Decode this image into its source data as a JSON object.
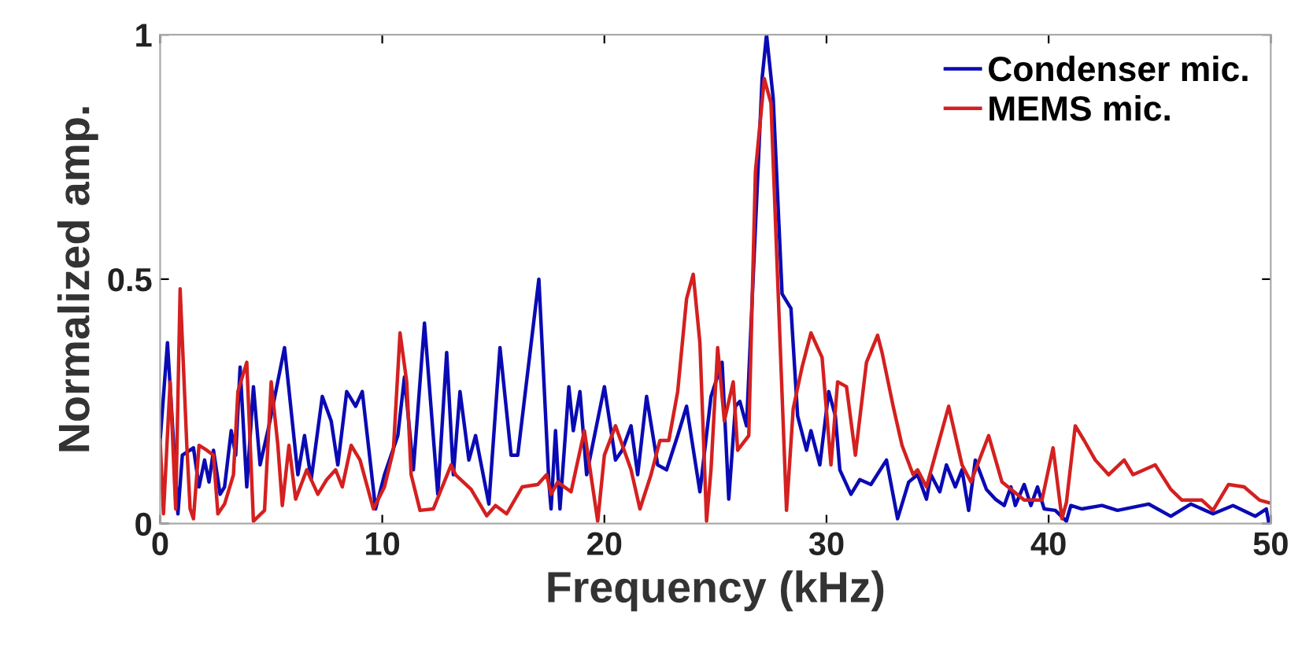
{
  "chart_data": {
    "type": "line",
    "xlabel": "Frequency (kHz)",
    "ylabel": "Normalized amp.",
    "xlim": [
      0,
      50
    ],
    "ylim": [
      0,
      1
    ],
    "xticks": [
      0,
      10,
      20,
      30,
      40,
      50
    ],
    "yticks": [
      0,
      0.5,
      1
    ],
    "grid": false,
    "legend": "top right",
    "marker": "none",
    "line_style": "solid",
    "series": [
      {
        "name": "Condenser mic.",
        "color": "#0a0ab4",
        "x": [
          0,
          0.33,
          0.8,
          1.0,
          1.5,
          1.75,
          2.0,
          2.2,
          2.4,
          2.7,
          2.9,
          3.2,
          3.4,
          3.6,
          3.9,
          4.2,
          4.5,
          4.9,
          5.6,
          6.2,
          6.5,
          6.8,
          7.3,
          7.7,
          8.0,
          8.4,
          8.8,
          9.1,
          9.7,
          10.1,
          10.7,
          11.0,
          11.4,
          11.9,
          12.5,
          12.9,
          13.2,
          13.5,
          13.9,
          14.2,
          14.8,
          15.3,
          15.8,
          16.1,
          17.05,
          17.5,
          17.6,
          17.8,
          18.0,
          18.4,
          18.6,
          18.9,
          19.2,
          20.0,
          20.5,
          20.8,
          21.2,
          21.5,
          21.9,
          22.4,
          22.8,
          23.3,
          23.7,
          24.3,
          24.8,
          25.3,
          25.6,
          25.9,
          26.1,
          26.4,
          27.1,
          27.3,
          27.6,
          28.0,
          28.4,
          28.7,
          29.1,
          29.3,
          29.7,
          30.1,
          30.4,
          30.6,
          31.1,
          31.5,
          32.0,
          32.7,
          33.2,
          33.7,
          34.1,
          34.5,
          34.7,
          35.1,
          35.4,
          35.8,
          36.1,
          36.4,
          36.7,
          37.2,
          37.6,
          38.0,
          38.3,
          38.5,
          38.9,
          39.2,
          39.5,
          39.8,
          40.3,
          40.8,
          41.0,
          41.5,
          42.4,
          43.1,
          44.5,
          45.5,
          46.4,
          47.4,
          48.3,
          49.3,
          49.8,
          49.9
        ],
        "values": [
          0.17,
          0.37,
          0.02,
          0.14,
          0.155,
          0.075,
          0.13,
          0.085,
          0.15,
          0.06,
          0.075,
          0.19,
          0.14,
          0.32,
          0.075,
          0.28,
          0.12,
          0.2,
          0.36,
          0.1,
          0.18,
          0.09,
          0.26,
          0.21,
          0.12,
          0.27,
          0.24,
          0.27,
          0.03,
          0.1,
          0.18,
          0.3,
          0.11,
          0.41,
          0.06,
          0.35,
          0.1,
          0.27,
          0.13,
          0.18,
          0.04,
          0.36,
          0.14,
          0.14,
          0.5,
          0.085,
          0.03,
          0.19,
          0.03,
          0.28,
          0.19,
          0.27,
          0.1,
          0.28,
          0.13,
          0.15,
          0.2,
          0.1,
          0.26,
          0.12,
          0.11,
          0.18,
          0.24,
          0.065,
          0.26,
          0.33,
          0.05,
          0.24,
          0.25,
          0.2,
          0.91,
          1.0,
          0.87,
          0.47,
          0.44,
          0.22,
          0.15,
          0.19,
          0.12,
          0.27,
          0.22,
          0.11,
          0.06,
          0.09,
          0.08,
          0.13,
          0.01,
          0.085,
          0.1,
          0.05,
          0.1,
          0.065,
          0.12,
          0.075,
          0.11,
          0.027,
          0.13,
          0.07,
          0.05,
          0.037,
          0.075,
          0.037,
          0.08,
          0.037,
          0.075,
          0.03,
          0.027,
          0.005,
          0.037,
          0.03,
          0.037,
          0.027,
          0.04,
          0.015,
          0.04,
          0.02,
          0.037,
          0.015,
          0.03,
          0.005
        ]
      },
      {
        "name": "MEMS mic.",
        "color": "#d42020",
        "x": [
          0,
          0.15,
          0.45,
          0.7,
          0.9,
          1.2,
          1.35,
          1.5,
          1.75,
          2.1,
          2.4,
          2.6,
          2.9,
          3.3,
          3.5,
          3.9,
          4.2,
          4.7,
          5.0,
          5.3,
          5.5,
          5.8,
          6.1,
          6.6,
          7.1,
          7.5,
          7.9,
          8.2,
          8.6,
          9.0,
          9.6,
          10.1,
          10.5,
          10.8,
          11.1,
          11.3,
          11.7,
          12.3,
          13.1,
          13.3,
          14.0,
          14.7,
          15.1,
          15.6,
          16.3,
          17.0,
          17.4,
          17.6,
          17.9,
          18.5,
          19.1,
          19.7,
          20.0,
          20.5,
          21.2,
          21.6,
          22.1,
          22.5,
          22.9,
          23.3,
          23.7,
          24.0,
          24.3,
          24.6,
          24.8,
          25.1,
          25.4,
          25.8,
          26.0,
          26.5,
          26.8,
          27.2,
          27.5,
          27.8,
          28.2,
          28.5,
          28.9,
          29.3,
          29.8,
          30.2,
          30.5,
          30.9,
          31.3,
          31.8,
          32.3,
          32.5,
          33.0,
          33.4,
          33.9,
          34.1,
          34.5,
          35.5,
          36.1,
          36.5,
          37.3,
          37.9,
          38.9,
          39.7,
          40.2,
          40.6,
          40.8,
          41.2,
          41.6,
          42.1,
          42.7,
          43.4,
          43.8,
          44.8,
          45.5,
          46.0,
          46.9,
          47.4,
          48.1,
          48.8,
          49.5,
          49.9
        ],
        "values": [
          0.17,
          0.02,
          0.29,
          0.03,
          0.48,
          0.16,
          0.03,
          0.01,
          0.16,
          0.15,
          0.14,
          0.02,
          0.04,
          0.1,
          0.27,
          0.33,
          0.005,
          0.027,
          0.29,
          0.16,
          0.037,
          0.16,
          0.05,
          0.11,
          0.06,
          0.09,
          0.11,
          0.075,
          0.16,
          0.13,
          0.03,
          0.075,
          0.15,
          0.39,
          0.29,
          0.1,
          0.027,
          0.03,
          0.12,
          0.1,
          0.07,
          0.016,
          0.037,
          0.02,
          0.075,
          0.08,
          0.1,
          0.06,
          0.085,
          0.065,
          0.19,
          0.005,
          0.14,
          0.2,
          0.11,
          0.03,
          0.1,
          0.17,
          0.17,
          0.27,
          0.46,
          0.51,
          0.37,
          0.005,
          0.11,
          0.36,
          0.21,
          0.29,
          0.15,
          0.18,
          0.72,
          0.91,
          0.86,
          0.5,
          0.027,
          0.235,
          0.32,
          0.39,
          0.34,
          0.12,
          0.29,
          0.28,
          0.14,
          0.33,
          0.385,
          0.35,
          0.24,
          0.16,
          0.1,
          0.11,
          0.075,
          0.24,
          0.12,
          0.085,
          0.18,
          0.085,
          0.048,
          0.048,
          0.155,
          0.01,
          0.043,
          0.2,
          0.17,
          0.13,
          0.1,
          0.13,
          0.1,
          0.12,
          0.07,
          0.048,
          0.048,
          0.027,
          0.08,
          0.075,
          0.048,
          0.043
        ]
      }
    ]
  }
}
